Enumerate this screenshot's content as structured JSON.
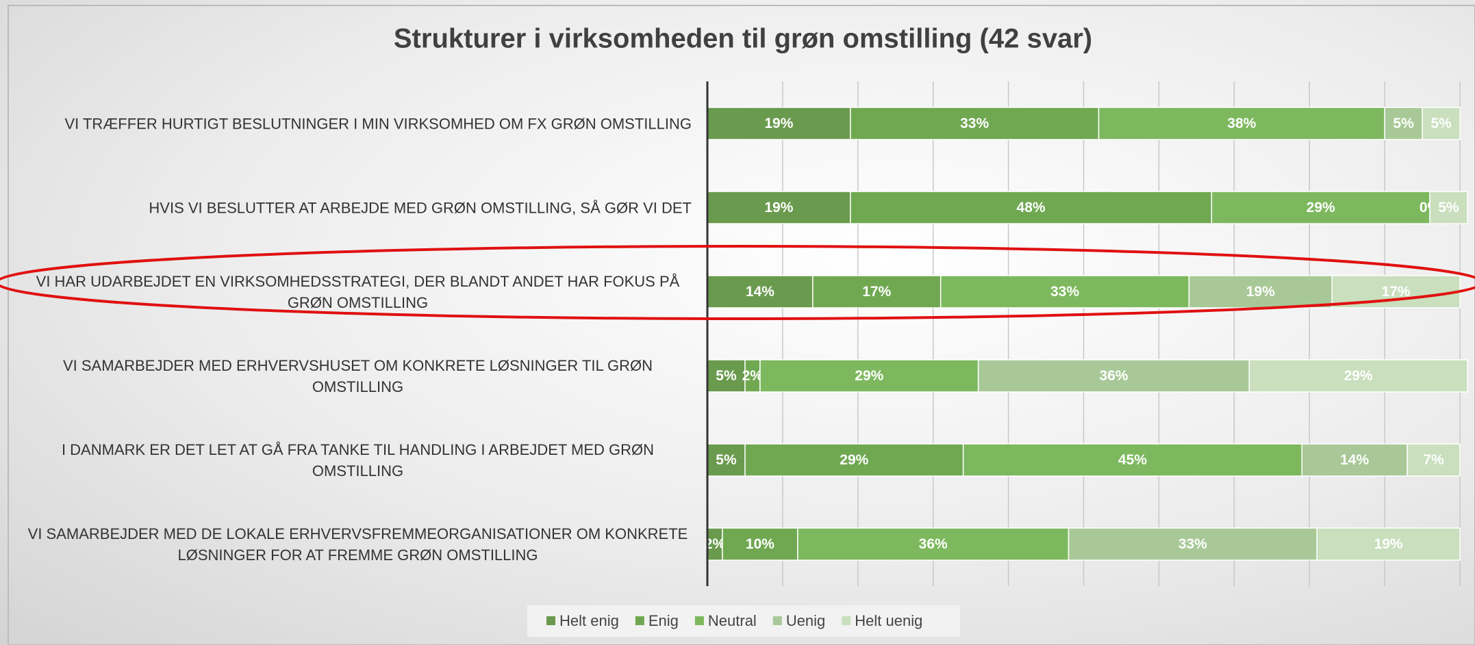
{
  "chart_data": {
    "type": "stacked-bar-horizontal",
    "title": "Strukturer i virksomheden til grøn omstilling (42 svar)",
    "categories": [
      "VI TRÆFFER HURTIGT BESLUTNINGER I MIN VIRKSOMHED OM FX GRØN OMSTILLING",
      "HVIS VI BESLUTTER AT ARBEJDE MED GRØN OMSTILLING, SÅ GØR VI DET",
      "VI HAR UDARBEJDET EN VIRKSOMHEDSSTRATEGI, DER BLANDT ANDET HAR FOKUS PÅ GRØN OMSTILLING",
      "VI SAMARBEJDER MED ERHVERVSHUSET OM KONKRETE LØSNINGER TIL GRØN OMSTILLING",
      "I DANMARK ER DET LET AT GÅ FRA TANKE TIL HANDLING I ARBEJDET MED GRØN OMSTILLING",
      "VI SAMARBEJDER MED DE LOKALE ERHVERVSFREMMEORGANISATIONER OM KONKRETE LØSNINGER FOR AT FREMME GRØN OMSTILLING"
    ],
    "series": [
      {
        "name": "Helt enig",
        "color": "#6a9a4e",
        "values": [
          19,
          19,
          14,
          5,
          5,
          2
        ],
        "value_labels": [
          "19%",
          "19%",
          "14%",
          "5%",
          "5%",
          "2%"
        ]
      },
      {
        "name": "Enig",
        "color": "#70a852",
        "values": [
          33,
          48,
          17,
          2,
          29,
          10
        ],
        "value_labels": [
          "33%",
          "48%",
          "17%",
          "2%",
          "29%",
          "10%"
        ]
      },
      {
        "name": "Neutral",
        "color": "#7db85e",
        "values": [
          38,
          29,
          33,
          29,
          45,
          36
        ],
        "value_labels": [
          "38%",
          "29%",
          "33%",
          "29%",
          "45%",
          "36%"
        ]
      },
      {
        "name": "Uenig",
        "color": "#a8c997",
        "values": [
          5,
          0,
          19,
          36,
          14,
          33
        ],
        "value_labels": [
          "5%",
          "0%",
          "19%",
          "36%",
          "14%",
          "33%"
        ]
      },
      {
        "name": "Helt uenig",
        "color": "#c9dfbd",
        "values": [
          5,
          5,
          17,
          29,
          7,
          19
        ],
        "value_labels": [
          "5%",
          "5%",
          "17%",
          "29%",
          "7%",
          "19%"
        ]
      }
    ],
    "xlim": [
      0,
      100
    ],
    "xticks": [
      0,
      10,
      20,
      30,
      40,
      50,
      60,
      70,
      80,
      90,
      100
    ],
    "grid": true
  }
}
